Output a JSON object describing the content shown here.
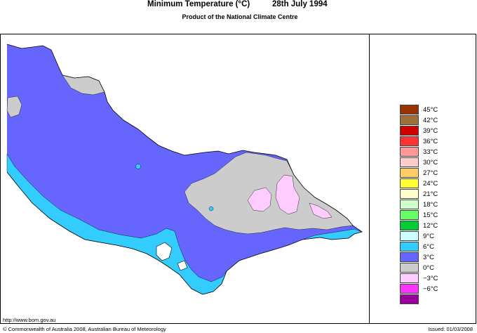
{
  "header": {
    "title": "Minimum Temperature (°C)",
    "date": "28th July 1994",
    "subtitle": "Product of the National Climate Centre"
  },
  "legend": {
    "items": [
      {
        "label": "45°C",
        "color": "#993300"
      },
      {
        "label": "42°C",
        "color": "#a0703a"
      },
      {
        "label": "39°C",
        "color": "#cc0000"
      },
      {
        "label": "36°C",
        "color": "#ff3333"
      },
      {
        "label": "33°C",
        "color": "#ff9999"
      },
      {
        "label": "30°C",
        "color": "#ffcccc"
      },
      {
        "label": "27°C",
        "color": "#ffcc66"
      },
      {
        "label": "24°C",
        "color": "#ffff33"
      },
      {
        "label": "21°C",
        "color": "#ffffcc"
      },
      {
        "label": "18°C",
        "color": "#ccffcc"
      },
      {
        "label": "15°C",
        "color": "#66ff66"
      },
      {
        "label": "12°C",
        "color": "#00cc33"
      },
      {
        "label": "9°C",
        "color": "#ccffff"
      },
      {
        "label": "6°C",
        "color": "#33ccff"
      },
      {
        "label": "3°C",
        "color": "#6666ff"
      },
      {
        "label": "0°C",
        "color": "#cccccc"
      },
      {
        "label": "−3°C",
        "color": "#ffccff"
      },
      {
        "label": "−6°C",
        "color": "#ff33ff"
      },
      {
        "label": "",
        "color": "#990099"
      }
    ]
  },
  "map": {
    "colors": {
      "band_3_6": "#6666ff",
      "band_6_9": "#33ccff",
      "band_0_3": "#cccccc",
      "band_minus3_0": "#ffccff",
      "coast": "#000000"
    }
  },
  "footer": {
    "url": "http://www.bom.gov.au",
    "copyright": "© Commonwealth of Australia 2008, Australian Bureau of Meteorology",
    "issued": "Issued: 01/03/2008"
  }
}
